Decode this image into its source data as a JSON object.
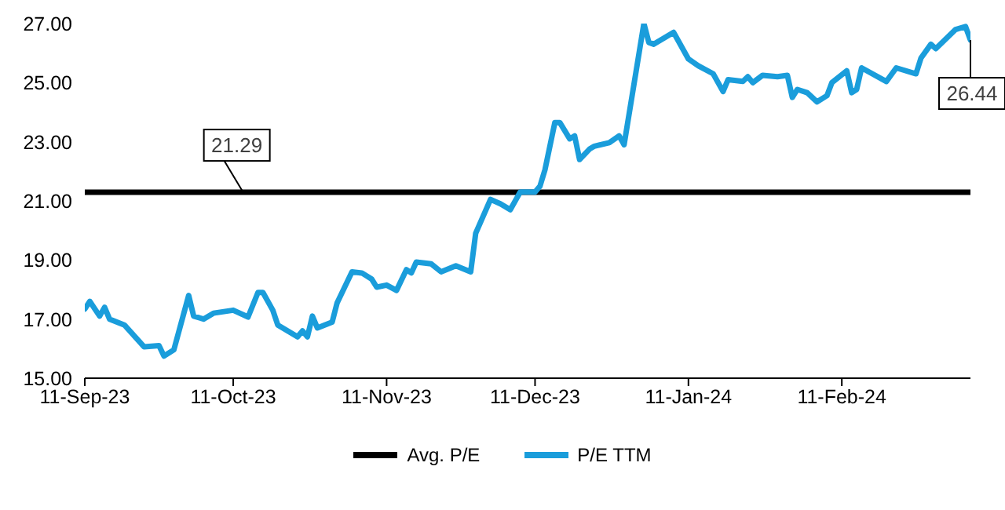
{
  "chart_data": {
    "type": "line",
    "xlim": [
      "2023-09-11",
      "2024-03-08"
    ],
    "xticks": [
      {
        "value": "2023-09-11",
        "label": "11-Sep-23"
      },
      {
        "value": "2023-10-11",
        "label": "11-Oct-23"
      },
      {
        "value": "2023-11-11",
        "label": "11-Nov-23"
      },
      {
        "value": "2023-12-11",
        "label": "11-Dec-23"
      },
      {
        "value": "2024-01-11",
        "label": "11-Jan-24"
      },
      {
        "value": "2024-02-11",
        "label": "11-Feb-24"
      }
    ],
    "ylim": [
      15,
      27
    ],
    "yticks": [
      {
        "value": 15,
        "label": "15.00"
      },
      {
        "value": 17,
        "label": "17.00"
      },
      {
        "value": 19,
        "label": "19.00"
      },
      {
        "value": 21,
        "label": "21.00"
      },
      {
        "value": 23,
        "label": "23.00"
      },
      {
        "value": 25,
        "label": "25.00"
      },
      {
        "value": 27,
        "label": "27.00"
      }
    ],
    "grid": false,
    "legend": "bottom",
    "marker": "none",
    "line_style": "solid",
    "series": [
      {
        "name": "Avg. P/E",
        "color": "#000000",
        "x": [
          "2023-09-11",
          "2024-03-08"
        ],
        "values": [
          21.29,
          21.29
        ]
      },
      {
        "name": "P/E TTM",
        "color": "#1a9ddb",
        "x": [
          "2023-09-11",
          "2023-09-12",
          "2023-09-14",
          "2023-09-15",
          "2023-09-16",
          "2023-09-19",
          "2023-09-23",
          "2023-09-26",
          "2023-09-27",
          "2023-09-29",
          "2023-10-02",
          "2023-10-03",
          "2023-10-05",
          "2023-10-07",
          "2023-10-11",
          "2023-10-14",
          "2023-10-16",
          "2023-10-17",
          "2023-10-19",
          "2023-10-20",
          "2023-10-24",
          "2023-10-25",
          "2023-10-26",
          "2023-10-27",
          "2023-10-28",
          "2023-10-31",
          "2023-11-01",
          "2023-11-04",
          "2023-11-06",
          "2023-11-08",
          "2023-11-09",
          "2023-11-11",
          "2023-11-13",
          "2023-11-15",
          "2023-11-16",
          "2023-11-17",
          "2023-11-20",
          "2023-11-22",
          "2023-11-25",
          "2023-11-28",
          "2023-11-29",
          "2023-12-02",
          "2023-12-04",
          "2023-12-06",
          "2023-12-08",
          "2023-12-11",
          "2023-12-12",
          "2023-12-13",
          "2023-12-15",
          "2023-12-16",
          "2023-12-18",
          "2023-12-19",
          "2023-12-20",
          "2023-12-22",
          "2023-12-23",
          "2023-12-26",
          "2023-12-28",
          "2023-12-29",
          "2024-01-02",
          "2024-01-03",
          "2024-01-04",
          "2024-01-06",
          "2024-01-08",
          "2024-01-11",
          "2024-01-13",
          "2024-01-16",
          "2024-01-18",
          "2024-01-19",
          "2024-01-22",
          "2024-01-23",
          "2024-01-24",
          "2024-01-26",
          "2024-01-29",
          "2024-01-31",
          "2024-02-01",
          "2024-02-02",
          "2024-02-04",
          "2024-02-06",
          "2024-02-08",
          "2024-02-09",
          "2024-02-12",
          "2024-02-13",
          "2024-02-14",
          "2024-02-15",
          "2024-02-20",
          "2024-02-22",
          "2024-02-26",
          "2024-02-27",
          "2024-02-29",
          "2024-03-01",
          "2024-03-05",
          "2024-03-07",
          "2024-03-08"
        ],
        "values": [
          17.34,
          17.6,
          17.1,
          17.4,
          17.0,
          16.8,
          16.06,
          16.1,
          15.75,
          15.96,
          17.8,
          17.1,
          17.0,
          17.2,
          17.3,
          17.07,
          17.9,
          17.9,
          17.3,
          16.8,
          16.4,
          16.6,
          16.4,
          17.1,
          16.7,
          16.9,
          17.55,
          18.6,
          18.56,
          18.35,
          18.08,
          18.15,
          17.97,
          18.67,
          18.56,
          18.93,
          18.87,
          18.6,
          18.8,
          18.6,
          19.9,
          21.05,
          20.9,
          20.7,
          21.3,
          21.3,
          21.5,
          22.05,
          23.65,
          23.65,
          23.1,
          23.2,
          22.4,
          22.75,
          22.85,
          22.97,
          23.2,
          22.9,
          27.0,
          26.36,
          26.3,
          26.5,
          26.7,
          25.8,
          25.57,
          25.3,
          24.7,
          25.1,
          25.04,
          25.2,
          25.0,
          25.25,
          25.2,
          25.25,
          24.5,
          24.77,
          24.66,
          24.35,
          24.56,
          25.0,
          25.4,
          24.66,
          24.77,
          25.5,
          25.04,
          25.5,
          25.3,
          25.83,
          26.3,
          26.15,
          26.8,
          26.9,
          26.44
        ]
      }
    ],
    "annotations": [
      {
        "text": "21.29",
        "x": "2023-10-13",
        "y": 21.29
      },
      {
        "text": "26.44",
        "x": "2024-03-08",
        "y": 26.44
      }
    ]
  }
}
